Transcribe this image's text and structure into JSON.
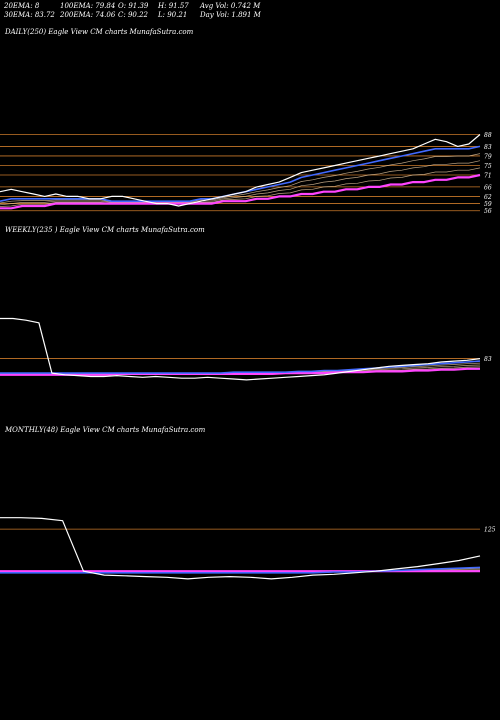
{
  "header": {
    "ema20": "20EMA: 8",
    "ema30": "30EMA: 83.72",
    "ema100": "100EMA: 79.84",
    "ema200": "200EMA: 74.06",
    "open": "O: 91.39",
    "close": "C: 90.22",
    "high": "H: 91.57",
    "low": "L: 90.21",
    "avg_vol": "Avg Vol: 0.742  M",
    "day_vol": "Day Vol: 1.891 M"
  },
  "panels": {
    "daily_title": "DAILY(250) Eagle  View  CM charts MunafaSutra.com",
    "weekly_title": "WEEKLY(235                ) Eagle  View  CM charts MunafaSutra.com",
    "monthly_title": "MONTHLY(48) Eagle  View  CM charts MunafaSutra.com"
  },
  "colors": {
    "background": "#000000",
    "price": "#ffffff",
    "ema_blue": "#4169ff",
    "ema_magenta": "#ff44ff",
    "level_line": "#c8782a",
    "ema_thin": "#e8c9a0"
  },
  "chart_data": [
    {
      "type": "line",
      "panel": "daily",
      "y_levels": [
        88,
        83,
        79,
        75,
        71,
        66,
        62,
        59,
        56
      ],
      "series": [
        {
          "role": "price",
          "values": [
            64,
            65,
            64,
            63,
            62,
            63,
            62,
            62,
            61,
            61,
            62,
            62,
            61,
            60,
            59,
            59,
            58,
            59,
            60,
            61,
            62,
            63,
            64,
            66,
            67,
            68,
            70,
            72,
            73,
            74,
            75,
            76,
            77,
            78,
            79,
            80,
            81,
            82,
            84,
            86,
            85,
            83,
            84,
            88
          ]
        },
        {
          "role": "ema_blue",
          "values": [
            60,
            61,
            61,
            61,
            61,
            61,
            61,
            61,
            61,
            61,
            60,
            60,
            60,
            60,
            60,
            60,
            60,
            60,
            61,
            61,
            62,
            63,
            64,
            65,
            66,
            67,
            68,
            70,
            71,
            72,
            73,
            74,
            75,
            76,
            77,
            78,
            79,
            80,
            81,
            82,
            82,
            82,
            82,
            83
          ]
        },
        {
          "role": "ema_magenta",
          "values": [
            57,
            57,
            58,
            58,
            58,
            59,
            59,
            59,
            59,
            59,
            59,
            59,
            59,
            59,
            59,
            59,
            59,
            59,
            59,
            59,
            60,
            60,
            60,
            61,
            61,
            62,
            62,
            63,
            63,
            64,
            64,
            65,
            65,
            66,
            66,
            67,
            67,
            68,
            68,
            69,
            69,
            70,
            70,
            71
          ]
        }
      ]
    },
    {
      "type": "line",
      "panel": "weekly",
      "y_levels": [
        83
      ],
      "series": [
        {
          "role": "price",
          "values": [
            130,
            130,
            128,
            125,
            66,
            64,
            63,
            62,
            62,
            63,
            62,
            61,
            62,
            61,
            60,
            60,
            61,
            60,
            59,
            58,
            59,
            60,
            61,
            62,
            63,
            64,
            66,
            68,
            70,
            72,
            74,
            75,
            76,
            77,
            79,
            80,
            81,
            83
          ]
        },
        {
          "role": "ema_blue",
          "values": [
            66,
            66,
            66,
            66,
            66,
            66,
            66,
            66,
            66,
            66,
            66,
            66,
            66,
            66,
            66,
            66,
            66,
            66,
            67,
            67,
            67,
            67,
            67,
            68,
            68,
            69,
            69,
            70,
            71,
            72,
            73,
            74,
            75,
            76,
            77,
            78,
            79,
            80
          ]
        },
        {
          "role": "ema_magenta",
          "values": [
            64,
            64,
            64,
            64,
            64,
            64,
            64,
            64,
            64,
            65,
            65,
            65,
            65,
            65,
            65,
            65,
            65,
            65,
            65,
            65,
            65,
            65,
            66,
            66,
            66,
            66,
            67,
            67,
            67,
            68,
            68,
            68,
            69,
            69,
            70,
            70,
            71,
            71
          ]
        }
      ]
    },
    {
      "type": "line",
      "panel": "monthly",
      "y_levels": [
        125
      ],
      "series": [
        {
          "role": "price",
          "values": [
            140,
            140,
            139,
            136,
            70,
            65,
            64,
            63,
            62,
            60,
            62,
            63,
            62,
            60,
            62,
            65,
            66,
            68,
            70,
            73,
            76,
            80,
            84,
            90
          ]
        },
        {
          "role": "ema_blue",
          "values": [
            68,
            68,
            68,
            68,
            68,
            68,
            68,
            68,
            68,
            68,
            68,
            68,
            68,
            68,
            68,
            68,
            69,
            69,
            70,
            71,
            72,
            73,
            74,
            75
          ]
        },
        {
          "role": "ema_magenta",
          "values": [
            70,
            70,
            70,
            70,
            70,
            70,
            70,
            70,
            70,
            70,
            70,
            70,
            70,
            70,
            70,
            70,
            70,
            70,
            70,
            70,
            70,
            70,
            70,
            70
          ]
        }
      ]
    }
  ]
}
